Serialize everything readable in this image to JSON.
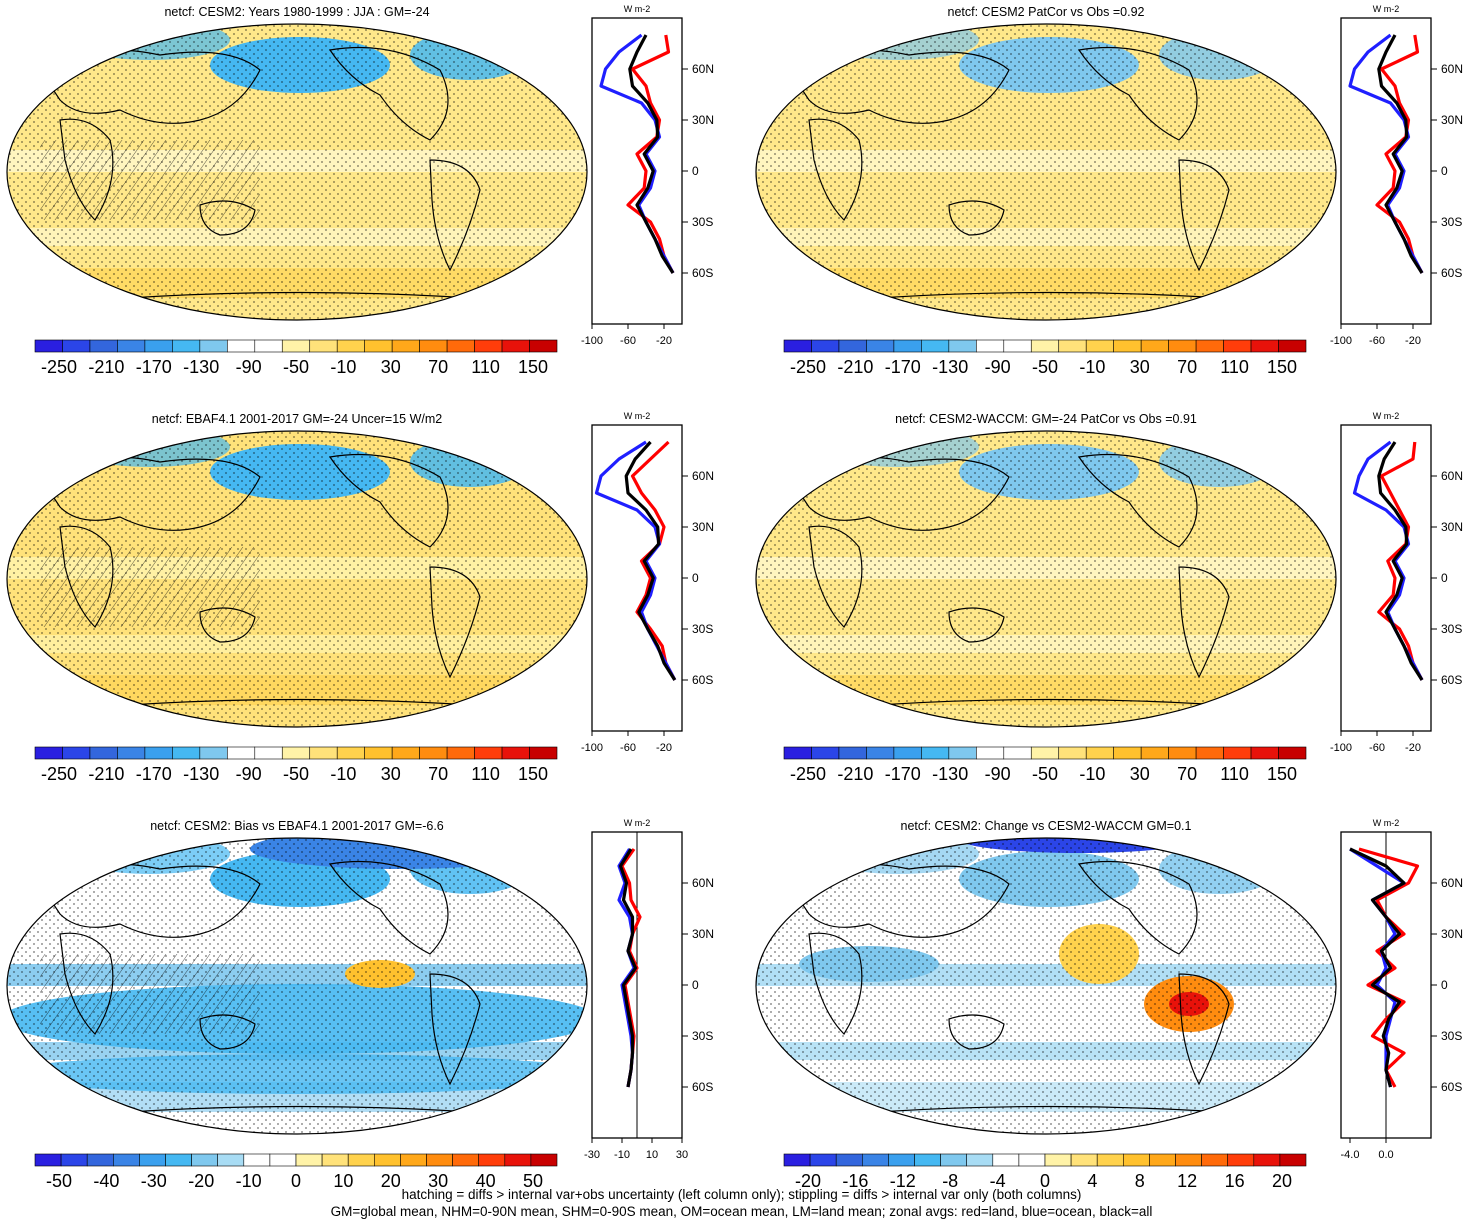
{
  "footer": {
    "line1": "hatching = diffs > internal var+obs uncertainty (left column only); stippling = diffs > internal var only (both columns)",
    "line2": "GM=global mean, NHM=0-90N mean, SHM=0-90S mean, OM=ocean mean, LM=land mean; zonal avgs: red=land, blue=ocean, black=all"
  },
  "colors": {
    "land": "#ff0000",
    "ocean": "#1f1fff",
    "all": "#000000"
  },
  "chart_data": [
    {
      "type": "heatmap",
      "title": "netcf: CESM2: Years 1980-1999 : JJA : GM=-24",
      "colorbar": [
        "-250",
        "-210",
        "-170",
        "-130",
        "-90",
        "-50",
        "-10",
        "30",
        "70",
        "110",
        "150"
      ],
      "zonal": {
        "unit": "W m-2",
        "xticks": [
          "-100",
          "-60",
          "-20"
        ],
        "xlim": [
          -100,
          0
        ],
        "lat_labels": [
          "60N",
          "30N",
          "0",
          "30S",
          "60S"
        ],
        "lat": [
          80,
          70,
          60,
          50,
          40,
          30,
          20,
          10,
          0,
          -10,
          -20,
          -30,
          -40,
          -50,
          -60
        ],
        "land": [
          -18,
          -15,
          -55,
          -40,
          -35,
          -25,
          -28,
          -50,
          -40,
          -42,
          -60,
          -35,
          -25,
          -20,
          -10
        ],
        "ocean": [
          -45,
          -70,
          -85,
          -90,
          -45,
          -30,
          -25,
          -40,
          -30,
          -35,
          -48,
          -40,
          -30,
          -20,
          -10
        ],
        "all": [
          -40,
          -50,
          -58,
          -55,
          -38,
          -28,
          -27,
          -42,
          -32,
          -38,
          -50,
          -40,
          -30,
          -22,
          -10
        ]
      }
    },
    {
      "type": "heatmap",
      "title": "netcf: CESM2 PatCor vs Obs =0.92",
      "colorbar": [
        "-250",
        "-210",
        "-170",
        "-130",
        "-90",
        "-50",
        "-10",
        "30",
        "70",
        "110",
        "150"
      ],
      "zonal": {
        "unit": "W m-2",
        "xticks": [
          "-100",
          "-60",
          "-20"
        ],
        "xlim": [
          -100,
          0
        ],
        "lat_labels": [
          "60N",
          "30N",
          "0",
          "30S",
          "60S"
        ],
        "lat": [
          80,
          70,
          60,
          50,
          40,
          30,
          20,
          10,
          0,
          -10,
          -20,
          -30,
          -40,
          -50,
          -60
        ],
        "land": [
          -18,
          -15,
          -55,
          -40,
          -35,
          -25,
          -28,
          -50,
          -40,
          -42,
          -60,
          -35,
          -25,
          -20,
          -10
        ],
        "ocean": [
          -45,
          -70,
          -85,
          -90,
          -45,
          -30,
          -25,
          -40,
          -30,
          -35,
          -48,
          -40,
          -30,
          -20,
          -10
        ],
        "all": [
          -40,
          -50,
          -58,
          -55,
          -38,
          -28,
          -27,
          -42,
          -32,
          -38,
          -50,
          -40,
          -30,
          -22,
          -10
        ]
      }
    },
    {
      "type": "heatmap",
      "title": "netcf: EBAF4.1 2001-2017 GM=-24 Uncer=15 W/m2",
      "colorbar": [
        "-250",
        "-210",
        "-170",
        "-130",
        "-90",
        "-50",
        "-10",
        "30",
        "70",
        "110",
        "150"
      ],
      "zonal": {
        "unit": "W m-2",
        "xticks": [
          "-100",
          "-60",
          "-20"
        ],
        "xlim": [
          -100,
          0
        ],
        "lat_labels": [
          "60N",
          "30N",
          "0",
          "30S",
          "60S"
        ],
        "lat": [
          80,
          70,
          60,
          50,
          40,
          30,
          20,
          10,
          0,
          -10,
          -20,
          -30,
          -40,
          -50,
          -60
        ],
        "land": [
          -15,
          -35,
          -55,
          -45,
          -30,
          -20,
          -25,
          -45,
          -35,
          -40,
          -50,
          -35,
          -22,
          -18,
          -8
        ],
        "ocean": [
          -40,
          -70,
          -90,
          -95,
          -50,
          -30,
          -25,
          -40,
          -30,
          -35,
          -45,
          -38,
          -28,
          -18,
          -8
        ],
        "all": [
          -35,
          -52,
          -62,
          -60,
          -40,
          -27,
          -26,
          -42,
          -32,
          -38,
          -48,
          -38,
          -27,
          -20,
          -8
        ]
      }
    },
    {
      "type": "heatmap",
      "title": "netcf: CESM2-WACCM: GM=-24 PatCor vs Obs =0.91",
      "colorbar": [
        "-250",
        "-210",
        "-170",
        "-130",
        "-90",
        "-50",
        "-10",
        "30",
        "70",
        "110",
        "150"
      ],
      "zonal": {
        "unit": "W m-2",
        "xticks": [
          "-100",
          "-60",
          "-20"
        ],
        "xlim": [
          -100,
          0
        ],
        "lat_labels": [
          "60N",
          "30N",
          "0",
          "30S",
          "60S"
        ],
        "lat": [
          80,
          70,
          60,
          50,
          40,
          30,
          20,
          10,
          0,
          -10,
          -20,
          -30,
          -40,
          -50,
          -60
        ],
        "land": [
          -18,
          -20,
          -55,
          -45,
          -35,
          -25,
          -28,
          -48,
          -40,
          -42,
          -58,
          -35,
          -25,
          -20,
          -10
        ],
        "ocean": [
          -45,
          -70,
          -80,
          -85,
          -50,
          -30,
          -25,
          -40,
          -30,
          -35,
          -48,
          -40,
          -30,
          -20,
          -10
        ],
        "all": [
          -40,
          -52,
          -58,
          -56,
          -40,
          -28,
          -27,
          -42,
          -32,
          -38,
          -50,
          -40,
          -30,
          -22,
          -10
        ]
      }
    },
    {
      "type": "heatmap",
      "title": "netcf: CESM2: Bias vs EBAF4.1 2001-2017 GM=-6.6",
      "colorbar": [
        "-50",
        "-40",
        "-30",
        "-20",
        "-10",
        "0",
        "10",
        "20",
        "30",
        "40",
        "50"
      ],
      "zonal": {
        "unit": "W m-2",
        "xticks": [
          "-30",
          "-10",
          "10",
          "30"
        ],
        "xlim": [
          -30,
          30
        ],
        "lat_labels": [
          "60N",
          "30N",
          "0",
          "30S",
          "60S"
        ],
        "lat": [
          80,
          70,
          60,
          50,
          40,
          30,
          20,
          10,
          0,
          -10,
          -20,
          -30,
          -40,
          -50,
          -60
        ],
        "land": [
          -2,
          -10,
          -5,
          -4,
          2,
          -3,
          -5,
          0,
          -8,
          -6,
          -4,
          -2,
          -3,
          -4,
          -6
        ],
        "ocean": [
          -5,
          -12,
          -8,
          -12,
          -5,
          -3,
          -6,
          -2,
          -10,
          -8,
          -6,
          -4,
          -3,
          -4,
          -6
        ],
        "all": [
          -4,
          -11,
          -7,
          -9,
          -3,
          -3,
          -6,
          -1,
          -9,
          -7,
          -5,
          -3,
          -3,
          -4,
          -6
        ]
      }
    },
    {
      "type": "heatmap",
      "title": "netcf: CESM2: Change vs CESM2-WACCM GM=0.1",
      "colorbar": [
        "-20",
        "-16",
        "-12",
        "-8",
        "-4",
        "0",
        "4",
        "8",
        "12",
        "16",
        "20"
      ],
      "zonal": {
        "unit": "W m-2",
        "xticks": [
          "-4.0",
          "0.0"
        ],
        "xlim": [
          -5,
          5
        ],
        "lat_labels": [
          "60N",
          "30N",
          "0",
          "30S",
          "60S"
        ],
        "lat": [
          80,
          70,
          60,
          50,
          40,
          30,
          20,
          10,
          0,
          -10,
          -20,
          -30,
          -40,
          -50,
          -60
        ],
        "land": [
          -3,
          3.5,
          2.5,
          -1,
          0,
          2,
          -1,
          1,
          -2,
          2,
          0,
          -1.5,
          2,
          0,
          1
        ],
        "ocean": [
          -4,
          -1,
          2,
          -1.5,
          0,
          1,
          -0.5,
          0,
          -1,
          1,
          0.5,
          0,
          0,
          0,
          0.5
        ],
        "all": [
          -4,
          0,
          2,
          -1.5,
          0,
          1.5,
          -0.5,
          0.5,
          -1.5,
          1.5,
          0.3,
          -0.3,
          0.3,
          0,
          0.5
        ]
      }
    }
  ]
}
